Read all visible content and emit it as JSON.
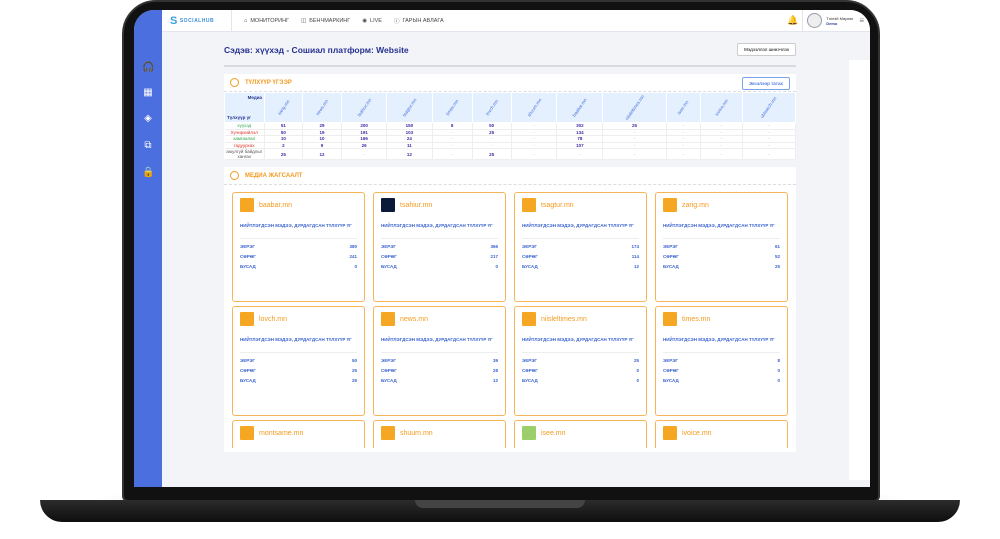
{
  "header": {
    "logo": "SOCIALHUB",
    "nav": [
      "МОНИТОРИНГ",
      "БЕНЧМАРКИНГ",
      "LIVE",
      "ГАРЫН АВЛАГА"
    ],
    "user_name": "Тээгэй Мөрөөг",
    "user_role": "Demo"
  },
  "page": {
    "title": "Сэдэв: хүүхэд - Сошиал платформ: Website",
    "filter_button": "Мэдээллэл шинэчлэх"
  },
  "keywords": {
    "title": "ТҮЛХҮҮР ҮГЭЭР",
    "export_button": "Эксэлээр татах",
    "corner_top": "Медиа",
    "corner_bottom": "Түлхүүр үг",
    "columns": [
      "zarig.mn",
      "news.mn",
      "tsahiur.mn",
      "tsagtur.mn",
      "times.mn",
      "lovch.mn",
      "shuum.mn",
      "baabar.mn",
      "niisleltimes.mn",
      "isee.mn",
      "ivoice.mn",
      "ubtsarch.mn"
    ],
    "rows": [
      {
        "label": "хүүхэд",
        "color": "#2ea84a",
        "values": [
          "51",
          "29",
          "200",
          "150",
          "8",
          "50",
          "-",
          "302",
          "25",
          "-",
          "-",
          "-"
        ]
      },
      {
        "label": "Хүчирхийлэл",
        "color": "#e0302a",
        "values": [
          "50",
          "19",
          "191",
          "103",
          "-",
          "25",
          "-",
          "134",
          "-",
          "-",
          "-",
          "-"
        ]
      },
      {
        "label": "хамгаалал",
        "color": "#2ea84a",
        "values": [
          "10",
          "10",
          "166",
          "24",
          "-",
          "-",
          "-",
          "78",
          "-",
          "-",
          "-",
          "-"
        ]
      },
      {
        "label": "гадуурхах",
        "color": "#e0302a",
        "values": [
          "2",
          "9",
          "26",
          "11",
          "-",
          "-",
          "-",
          "107",
          "-",
          "-",
          "-",
          "-"
        ]
      },
      {
        "label": "аюулгүй байдлыг хангах",
        "color": "#555555",
        "values": [
          "25",
          "12",
          "-",
          "12",
          "-",
          "25",
          "-",
          "-",
          "-",
          "-",
          "-",
          "-"
        ]
      }
    ]
  },
  "media": {
    "title": "МЕДИА ЖАГСААЛТ",
    "subtitle": "НИЙТЛЭГДСЭН МЭДЭЭ, ДУРДАГДСАН ТҮЛХҮҮР ҮГ",
    "labels": [
      "ЭЕРЭГ",
      "СӨРӨГ",
      "БУСАД"
    ],
    "cards": [
      {
        "name": "baabar.mn",
        "values": [
          "380",
          "241",
          "0"
        ],
        "logo_color": "#f5a623"
      },
      {
        "name": "tsahiur.mn",
        "values": [
          "366",
          "217",
          "0"
        ],
        "logo_color": "#0c1a3a"
      },
      {
        "name": "tsagtur.mn",
        "values": [
          "174",
          "114",
          "12"
        ],
        "logo_color": "#f5a623"
      },
      {
        "name": "zarig.mn",
        "values": [
          "61",
          "52",
          "25"
        ],
        "logo_color": "#f5a623"
      },
      {
        "name": "lovch.mn",
        "values": [
          "50",
          "25",
          "25"
        ],
        "logo_color": "#f5a623"
      },
      {
        "name": "news.mn",
        "values": [
          "39",
          "28",
          "12"
        ],
        "logo_color": "#f5a623"
      },
      {
        "name": "niisleltimes.mn",
        "values": [
          "25",
          "0",
          "0"
        ],
        "logo_color": "#f5a623"
      },
      {
        "name": "times.mn",
        "values": [
          "8",
          "0",
          "0"
        ],
        "logo_color": "#f5a623"
      },
      {
        "name": "montsame.mn",
        "values": [],
        "logo_color": "#f5a623"
      },
      {
        "name": "shuum.mn",
        "values": [],
        "logo_color": "#f5a623"
      },
      {
        "name": "isee.mn",
        "values": [],
        "logo_color": "#9ccf6a"
      },
      {
        "name": "ivoice.mn",
        "values": [],
        "logo_color": "#f5a623"
      }
    ]
  }
}
